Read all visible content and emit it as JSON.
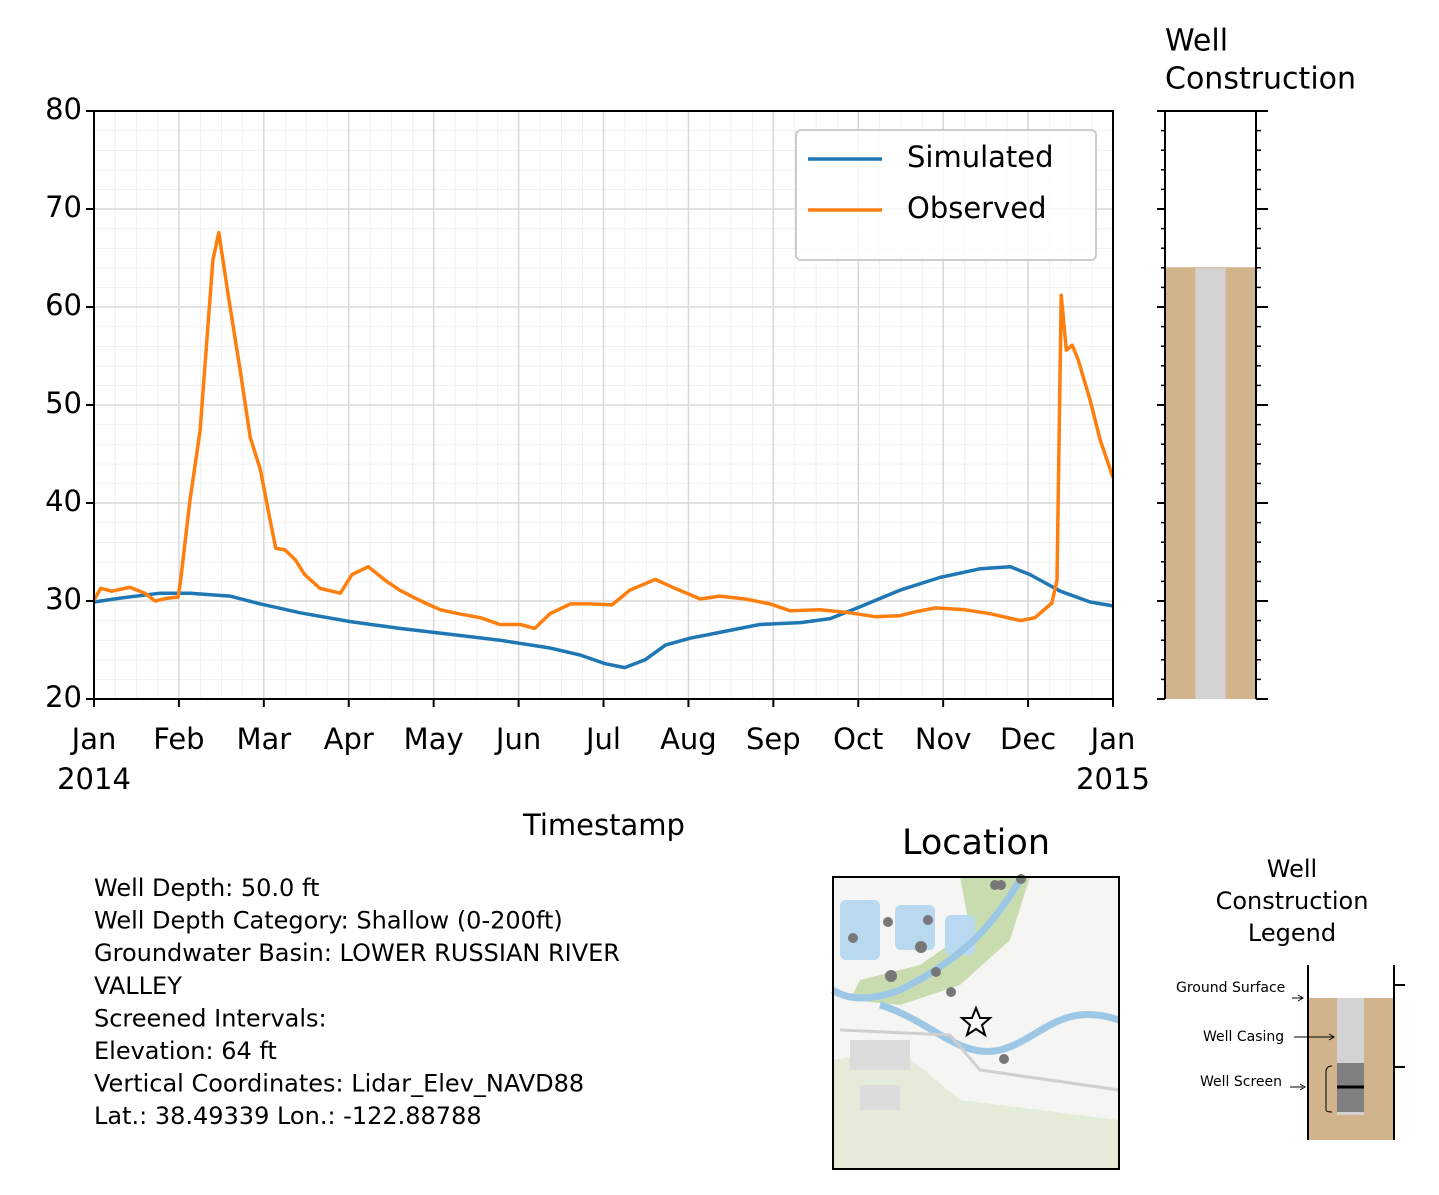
{
  "chart_data": [
    {
      "type": "line",
      "xlabel": "Timestamp",
      "xlim": [
        0,
        12
      ],
      "xticks": [
        {
          "value": 0,
          "label": "Jan",
          "sublabel": "2014"
        },
        {
          "value": 1,
          "label": "Feb"
        },
        {
          "value": 2,
          "label": "Mar"
        },
        {
          "value": 3,
          "label": "Apr"
        },
        {
          "value": 4,
          "label": "May"
        },
        {
          "value": 5,
          "label": "Jun"
        },
        {
          "value": 6,
          "label": "Jul"
        },
        {
          "value": 7,
          "label": "Aug"
        },
        {
          "value": 8,
          "label": "Sep"
        },
        {
          "value": 9,
          "label": "Oct"
        },
        {
          "value": 10,
          "label": "Nov"
        },
        {
          "value": 11,
          "label": "Dec"
        },
        {
          "value": 12,
          "label": "Jan",
          "sublabel": "2015"
        }
      ],
      "ylim": [
        20,
        80
      ],
      "yticks": [
        20,
        30,
        40,
        50,
        60,
        70,
        80
      ],
      "grid": true,
      "legend": "upper right",
      "series": [
        {
          "name": "Simulated",
          "color": "#1f77b4",
          "x": [
            0,
            0.31,
            0.78,
            1.13,
            1.6,
            1.96,
            2.43,
            3.02,
            3.6,
            4.19,
            4.78,
            5.37,
            5.72,
            6.02,
            6.25,
            6.49,
            6.73,
            7.02,
            7.37,
            7.84,
            8.32,
            8.67,
            9.02,
            9.49,
            9.96,
            10.44,
            10.79,
            11.02,
            11.38,
            11.73,
            12
          ],
          "values": [
            29.9,
            30.3,
            30.8,
            30.8,
            30.5,
            29.7,
            28.8,
            27.9,
            27.2,
            26.6,
            26.0,
            25.2,
            24.5,
            23.6,
            23.2,
            24.0,
            25.5,
            26.2,
            26.8,
            27.6,
            27.8,
            28.2,
            29.4,
            31.1,
            32.4,
            33.3,
            33.5,
            32.7,
            31.0,
            29.9,
            29.5
          ]
        },
        {
          "name": "Observed",
          "color": "#ff7f0e",
          "x": [
            0,
            0.08,
            0.21,
            0.42,
            0.6,
            0.72,
            0.87,
            0.99,
            1.02,
            1.13,
            1.25,
            1.4,
            1.47,
            1.58,
            1.72,
            1.84,
            1.96,
            2.05,
            2.14,
            2.25,
            2.37,
            2.48,
            2.66,
            2.9,
            3.04,
            3.23,
            3.43,
            3.6,
            3.78,
            3.9,
            4.08,
            4.29,
            4.55,
            4.78,
            5.02,
            5.19,
            5.37,
            5.61,
            5.84,
            6.1,
            6.31,
            6.61,
            6.84,
            7.14,
            7.37,
            7.67,
            7.96,
            8.2,
            8.55,
            8.9,
            9.2,
            9.49,
            9.67,
            9.91,
            10.26,
            10.55,
            10.91,
            11.08,
            11.28,
            11.34,
            11.39,
            11.45,
            11.52,
            11.59,
            11.73,
            11.85,
            12
          ],
          "values": [
            30.1,
            31.3,
            31.0,
            31.4,
            30.8,
            30.0,
            30.3,
            30.4,
            32.1,
            40.3,
            47.4,
            64.8,
            67.6,
            61.2,
            53.6,
            46.7,
            43.4,
            39.3,
            35.4,
            35.2,
            34.2,
            32.7,
            31.3,
            30.8,
            32.7,
            33.5,
            32.1,
            31.1,
            30.3,
            29.8,
            29.1,
            28.7,
            28.3,
            27.6,
            27.6,
            27.2,
            28.7,
            29.7,
            29.7,
            29.6,
            31.1,
            32.2,
            31.3,
            30.2,
            30.5,
            30.2,
            29.7,
            29.0,
            29.1,
            28.8,
            28.4,
            28.5,
            28.9,
            29.3,
            29.1,
            28.7,
            28.0,
            28.3,
            29.8,
            32.1,
            61.2,
            55.6,
            56.1,
            54.6,
            50.5,
            46.4,
            42.6
          ]
        }
      ]
    },
    {
      "type": "well",
      "title_lines": [
        "Well",
        "Construction"
      ],
      "ylim": [
        20,
        80
      ],
      "yticks": [
        20,
        30,
        40,
        50,
        60,
        70,
        80
      ],
      "ground_elevation": 64,
      "soil_color": "#d2b48c",
      "casing_color": "#d3d3d3"
    }
  ],
  "info": {
    "lines": [
      "Well Depth: 50.0 ft",
      "Well Depth Category: Shallow (0-200ft)",
      "Groundwater Basin: LOWER RUSSIAN RIVER",
      "VALLEY",
      "Screened Intervals:",
      "Elevation: 64 ft",
      "Vertical Coordinates: Lidar_Elev_NAVD88",
      "Lat.: 38.49339 Lon.: -122.88788"
    ]
  },
  "location": {
    "title": "Location"
  },
  "construction_legend": {
    "title_lines": [
      "Well",
      "Construction",
      "Legend"
    ],
    "labels": [
      "Ground Surface",
      "Well Casing",
      "Well Screen"
    ]
  }
}
